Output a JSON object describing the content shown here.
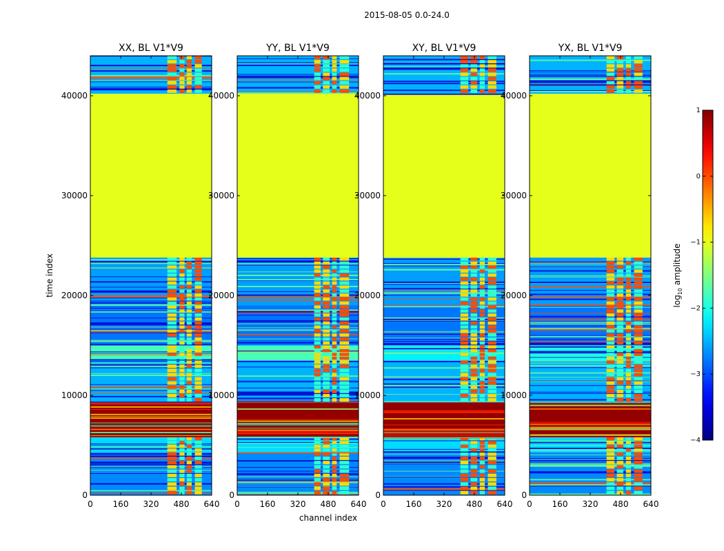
{
  "chart_data": {
    "type": "heatmap",
    "suptitle": "2015-08-05 0.0-24.0",
    "xlabel": "channel index",
    "ylabel": "time index",
    "xlim": [
      0,
      640
    ],
    "ylim": [
      0,
      44000
    ],
    "x_ticks": [
      0,
      160,
      320,
      480,
      640
    ],
    "y_ticks": [
      0,
      10000,
      20000,
      30000,
      40000
    ],
    "panels": [
      {
        "title": "XX, BL V1*V9",
        "hot_channels": [
          [
            406,
            455
          ],
          [
            470,
            497
          ],
          [
            508,
            535
          ],
          [
            551,
            588
          ]
        ],
        "bands": [
          {
            "t": [
              0,
              4300
            ],
            "level": -2.7
          },
          {
            "t": [
              4300,
              5800
            ],
            "level": -2.3
          },
          {
            "t": [
              5800,
              9300
            ],
            "level": 0.9
          },
          {
            "t": [
              9300,
              13500
            ],
            "level": -2.5
          },
          {
            "t": [
              13500,
              15000
            ],
            "level": -1.8
          },
          {
            "t": [
              15000,
              19000
            ],
            "level": -2.8
          },
          {
            "t": [
              19000,
              23800
            ],
            "level": -2.6
          },
          {
            "t": [
              23800,
              40200
            ],
            "level": -1.0
          },
          {
            "t": [
              40200,
              44000
            ],
            "level": -2.5
          }
        ]
      },
      {
        "title": "YY, BL V1*V9",
        "hot_channels": [
          [
            406,
            440
          ],
          [
            452,
            488
          ],
          [
            500,
            525
          ],
          [
            540,
            590
          ]
        ],
        "bands": [
          {
            "t": [
              0,
              4300
            ],
            "level": -2.7
          },
          {
            "t": [
              4300,
              5800
            ],
            "level": -2.3
          },
          {
            "t": [
              5800,
              9300
            ],
            "level": 0.9
          },
          {
            "t": [
              9300,
              13500
            ],
            "level": -2.5
          },
          {
            "t": [
              13500,
              15000
            ],
            "level": -1.8
          },
          {
            "t": [
              15000,
              19000
            ],
            "level": -2.8
          },
          {
            "t": [
              19000,
              23800
            ],
            "level": -2.6
          },
          {
            "t": [
              23800,
              40200
            ],
            "level": -1.0
          },
          {
            "t": [
              40200,
              44000
            ],
            "level": -2.5
          }
        ]
      },
      {
        "title": "XY, BL V1*V9",
        "hot_channels": [
          [
            406,
            448
          ],
          [
            460,
            495
          ],
          [
            508,
            535
          ],
          [
            551,
            596
          ]
        ],
        "bands": [
          {
            "t": [
              0,
              4300
            ],
            "level": -2.7
          },
          {
            "t": [
              4300,
              5800
            ],
            "level": -2.3
          },
          {
            "t": [
              5800,
              9300
            ],
            "level": 0.9
          },
          {
            "t": [
              9300,
              13500
            ],
            "level": -2.5
          },
          {
            "t": [
              13500,
              15000
            ],
            "level": -2.2
          },
          {
            "t": [
              15000,
              19000
            ],
            "level": -2.8
          },
          {
            "t": [
              19000,
              23800
            ],
            "level": -2.6
          },
          {
            "t": [
              23800,
              40200
            ],
            "level": -1.0
          },
          {
            "t": [
              40200,
              44000
            ],
            "level": -2.5
          }
        ]
      },
      {
        "title": "YX, BL V1*V9",
        "hot_channels": [
          [
            406,
            448
          ],
          [
            460,
            495
          ],
          [
            508,
            535
          ],
          [
            551,
            596
          ]
        ],
        "bands": [
          {
            "t": [
              0,
              4300
            ],
            "level": -2.7
          },
          {
            "t": [
              4300,
              5800
            ],
            "level": -2.3
          },
          {
            "t": [
              5800,
              9300
            ],
            "level": 0.9
          },
          {
            "t": [
              9300,
              13500
            ],
            "level": -2.5
          },
          {
            "t": [
              13500,
              15000
            ],
            "level": -2.0
          },
          {
            "t": [
              15000,
              19000
            ],
            "level": -2.8
          },
          {
            "t": [
              19000,
              23800
            ],
            "level": -2.6
          },
          {
            "t": [
              23800,
              40200
            ],
            "level": -1.0
          },
          {
            "t": [
              40200,
              44000
            ],
            "level": -2.5
          }
        ]
      }
    ],
    "colorbar": {
      "label": "log10 amplitude",
      "label_main": "log",
      "label_sub": "10",
      "label_rest": " amplitude",
      "range": [
        -4,
        1
      ],
      "ticks": [
        1,
        0,
        -1,
        -2,
        -3,
        -4
      ],
      "tick_labels": [
        "1",
        "0",
        "−1",
        "−2",
        "−3",
        "−4"
      ],
      "colormap": "jet"
    }
  }
}
